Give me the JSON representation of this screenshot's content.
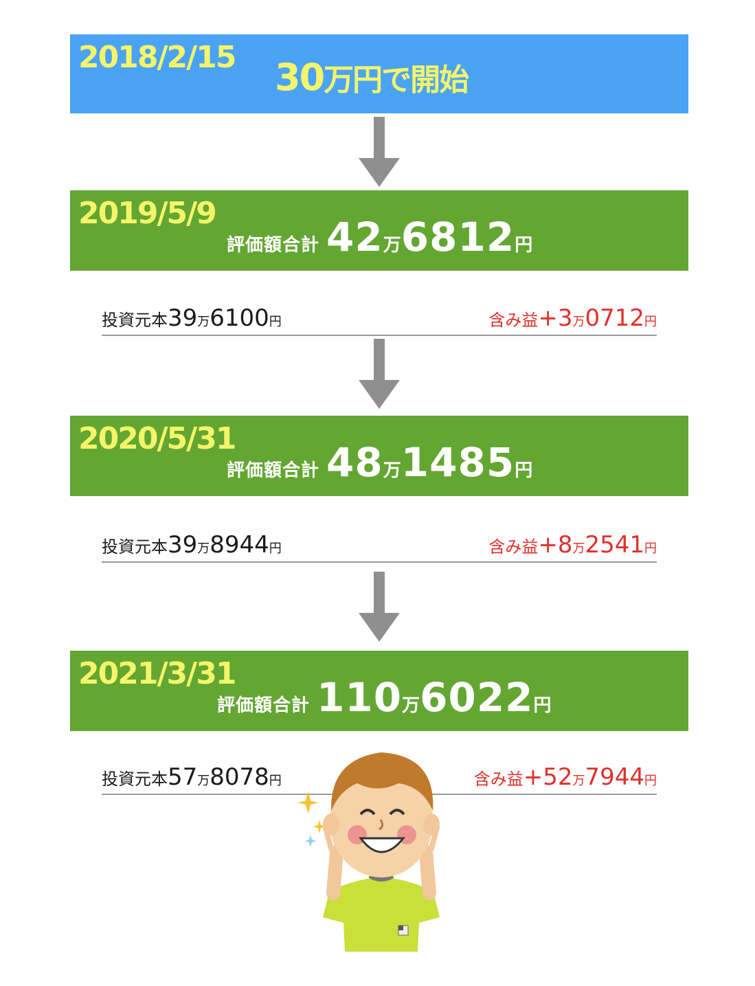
{
  "start": {
    "date": "2018/2/15",
    "amount": "30",
    "unit": "万円で開始"
  },
  "milestones": [
    {
      "date": "2019/5/9",
      "eval_label": "評価額合計",
      "eval_man": "42",
      "man": "万",
      "eval_rest": "6812",
      "yen": "円",
      "principal_label": "投資元本",
      "principal_man": "39",
      "principal_rest": "6100",
      "gain_label": "含み益",
      "gain_man": "+3",
      "gain_rest": "0712"
    },
    {
      "date": "2020/5/31",
      "eval_label": "評価額合計",
      "eval_man": "48",
      "man": "万",
      "eval_rest": "1485",
      "yen": "円",
      "principal_label": "投資元本",
      "principal_man": "39",
      "principal_rest": "8944",
      "gain_label": "含み益",
      "gain_man": "+8",
      "gain_rest": "2541"
    },
    {
      "date": "2021/3/31",
      "eval_label": "評価額合計",
      "eval_man": "110",
      "man": "万",
      "eval_rest": "6022",
      "yen": "円",
      "principal_label": "投資元本",
      "principal_man": "57",
      "principal_rest": "8078",
      "gain_label": "含み益",
      "gain_man": "+52",
      "gain_rest": "7944"
    }
  ],
  "colors": {
    "blue": "#4aa3f5",
    "green": "#63a632",
    "yellow_text": "#f5f56a",
    "gain_red": "#e0302b"
  }
}
